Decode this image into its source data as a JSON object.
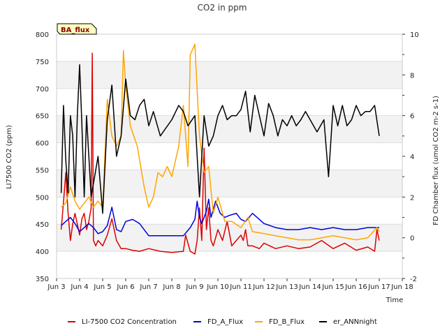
{
  "chart_data": {
    "type": "line",
    "title": "CO2 in ppm",
    "xlabel": "Time",
    "ylabel_left": "LI7500 CO2 (ppm)",
    "ylabel_right": "FD Chamber flux (umol CO2 m-2 s-1)",
    "badge": "BA_flux",
    "x_range": [
      3,
      18
    ],
    "y_left_range": [
      350,
      800
    ],
    "y_right_range": [
      -2,
      10
    ],
    "x_ticks": [
      {
        "value": 3,
        "label": "Jun 3"
      },
      {
        "value": 4,
        "label": "Jun 4"
      },
      {
        "value": 5,
        "label": "Jun 5"
      },
      {
        "value": 6,
        "label": "Jun 6"
      },
      {
        "value": 7,
        "label": "Jun 7"
      },
      {
        "value": 8,
        "label": "Jun 8"
      },
      {
        "value": 9,
        "label": "Jun 9"
      },
      {
        "value": 10,
        "label": "Jun 10"
      },
      {
        "value": 11,
        "label": "Jun 11"
      },
      {
        "value": 12,
        "label": "Jun 12"
      },
      {
        "value": 13,
        "label": "Jun 13"
      },
      {
        "value": 14,
        "label": "Jun 14"
      },
      {
        "value": 15,
        "label": "Jun 15"
      },
      {
        "value": 16,
        "label": "Jun 16"
      },
      {
        "value": 17,
        "label": "Jun 17"
      },
      {
        "value": 18,
        "label": "Jun 18"
      }
    ],
    "y_left_ticks": [
      "350",
      "400",
      "450",
      "500",
      "550",
      "600",
      "650",
      "700",
      "750",
      "800"
    ],
    "y_right_ticks": [
      "-2",
      "0",
      "2",
      "4",
      "6",
      "8",
      "10"
    ],
    "series": [
      {
        "name": "LI-7500 CO2 Concentration",
        "axis": "left",
        "color": "#dd0000",
        "x": [
          3.2,
          3.3,
          3.4,
          3.5,
          3.6,
          3.7,
          3.8,
          3.9,
          4.0,
          4.1,
          4.2,
          4.3,
          4.4,
          4.5,
          4.55,
          4.6,
          4.7,
          4.8,
          5.0,
          5.2,
          5.4,
          5.6,
          5.8,
          6.0,
          6.3,
          6.6,
          7.0,
          7.5,
          8.0,
          8.5,
          8.6,
          8.8,
          9.0,
          9.1,
          9.2,
          9.3,
          9.4,
          9.5,
          9.6,
          9.7,
          9.8,
          10.0,
          10.2,
          10.4,
          10.6,
          10.8,
          11.0,
          11.1,
          11.2,
          11.3,
          11.5,
          11.8,
          12.0,
          12.5,
          13.0,
          13.5,
          14.0,
          14.5,
          15.0,
          15.5,
          16.0,
          16.5,
          16.8,
          16.9,
          17.0
        ],
        "y": [
          440,
          490,
          545,
          470,
          420,
          450,
          470,
          450,
          430,
          460,
          470,
          440,
          455,
          480,
          765,
          420,
          410,
          420,
          410,
          430,
          460,
          420,
          405,
          405,
          402,
          400,
          405,
          400,
          398,
          400,
          430,
          400,
          395,
          420,
          480,
          420,
          590,
          440,
          480,
          420,
          410,
          440,
          420,
          455,
          410,
          420,
          430,
          420,
          440,
          410,
          410,
          405,
          415,
          405,
          410,
          405,
          408,
          420,
          405,
          415,
          402,
          408,
          400,
          440,
          420
        ]
      },
      {
        "name": "FD_A_Flux",
        "axis": "right",
        "color": "#0000dd",
        "x": [
          3.2,
          3.4,
          3.6,
          3.8,
          4.0,
          4.2,
          4.4,
          4.6,
          4.8,
          5.0,
          5.2,
          5.4,
          5.6,
          5.8,
          6.0,
          6.3,
          6.6,
          7.0,
          7.5,
          8.0,
          8.5,
          8.8,
          9.0,
          9.1,
          9.2,
          9.3,
          9.5,
          9.6,
          9.7,
          9.9,
          10.1,
          10.3,
          10.5,
          10.8,
          11.0,
          11.2,
          11.5,
          12.0,
          12.5,
          13.0,
          13.5,
          14.0,
          14.5,
          15.0,
          15.5,
          16.0,
          16.5,
          17.0
        ],
        "y": [
          0.6,
          0.8,
          1.0,
          0.7,
          0.3,
          0.5,
          0.7,
          0.5,
          0.2,
          0.3,
          0.6,
          1.5,
          0.4,
          0.3,
          0.8,
          0.9,
          0.7,
          0.1,
          0.1,
          0.1,
          0.1,
          0.5,
          0.9,
          1.8,
          1.0,
          0.7,
          1.3,
          1.9,
          1.0,
          1.8,
          1.2,
          1.0,
          1.1,
          1.2,
          0.9,
          0.8,
          1.2,
          0.7,
          0.5,
          0.4,
          0.4,
          0.5,
          0.4,
          0.5,
          0.4,
          0.4,
          0.5,
          0.5
        ]
      },
      {
        "name": "FD_B_Flux",
        "axis": "right",
        "color": "#ffa500",
        "x": [
          3.2,
          3.4,
          3.6,
          3.8,
          4.0,
          4.2,
          4.4,
          4.6,
          4.8,
          5.0,
          5.2,
          5.4,
          5.6,
          5.8,
          5.9,
          6.0,
          6.2,
          6.5,
          6.8,
          7.0,
          7.2,
          7.4,
          7.6,
          7.8,
          8.0,
          8.3,
          8.5,
          8.7,
          8.8,
          9.0,
          9.2,
          9.4,
          9.6,
          9.8,
          10.0,
          10.3,
          10.6,
          11.0,
          11.3,
          11.5,
          12.0,
          12.5,
          13.0,
          13.5,
          14.0,
          14.5,
          15.0,
          15.5,
          16.0,
          16.5,
          16.9,
          17.0
        ],
        "y": [
          1.5,
          1.7,
          2.5,
          1.8,
          1.4,
          1.7,
          2.0,
          1.5,
          1.8,
          1.5,
          6.8,
          5.0,
          4.5,
          5.0,
          9.2,
          7.5,
          5.5,
          4.5,
          2.5,
          1.5,
          2.0,
          3.2,
          3.0,
          3.5,
          3.0,
          4.5,
          6.5,
          3.5,
          9.0,
          9.5,
          5.0,
          3.2,
          3.5,
          1.2,
          2.0,
          0.8,
          0.8,
          0.5,
          1.0,
          0.3,
          0.2,
          0.1,
          0.0,
          -0.1,
          -0.1,
          0.0,
          0.1,
          0.0,
          -0.1,
          0.0,
          0.5,
          0.3
        ]
      },
      {
        "name": "er_ANNnight",
        "axis": "right",
        "color": "#000000",
        "x": [
          3.2,
          3.3,
          3.4,
          3.5,
          3.6,
          3.7,
          3.8,
          3.9,
          4.0,
          4.1,
          4.2,
          4.3,
          4.5,
          4.8,
          5.0,
          5.2,
          5.4,
          5.6,
          5.8,
          6.0,
          6.2,
          6.4,
          6.6,
          6.8,
          7.0,
          7.2,
          7.5,
          8.0,
          8.3,
          8.5,
          8.7,
          9.0,
          9.2,
          9.4,
          9.6,
          9.8,
          10.0,
          10.2,
          10.4,
          10.6,
          10.8,
          11.0,
          11.2,
          11.4,
          11.6,
          11.8,
          12.0,
          12.2,
          12.4,
          12.6,
          12.8,
          13.0,
          13.2,
          13.4,
          13.6,
          13.8,
          14.0,
          14.3,
          14.6,
          14.8,
          15.0,
          15.2,
          15.4,
          15.6,
          15.8,
          16.0,
          16.2,
          16.4,
          16.6,
          16.8,
          17.0
        ],
        "y": [
          2.2,
          6.5,
          3.8,
          2.2,
          6.0,
          5.0,
          2.0,
          6.0,
          8.5,
          5.5,
          2.0,
          6.0,
          2.0,
          4.0,
          1.2,
          5.8,
          7.5,
          4.0,
          5.0,
          7.8,
          6.0,
          5.8,
          6.5,
          6.8,
          5.5,
          6.2,
          5.0,
          5.8,
          6.5,
          6.2,
          5.5,
          6.0,
          2.0,
          6.0,
          4.5,
          5.0,
          6.0,
          6.5,
          5.8,
          6.0,
          6.0,
          6.3,
          7.2,
          5.2,
          7.0,
          6.0,
          5.0,
          6.6,
          6.0,
          5.0,
          5.8,
          5.5,
          6.0,
          5.5,
          5.8,
          6.2,
          5.8,
          5.2,
          5.8,
          3.0,
          6.5,
          5.5,
          6.5,
          5.5,
          5.8,
          6.5,
          6.0,
          6.2,
          6.2,
          6.5,
          5.0
        ]
      }
    ]
  }
}
